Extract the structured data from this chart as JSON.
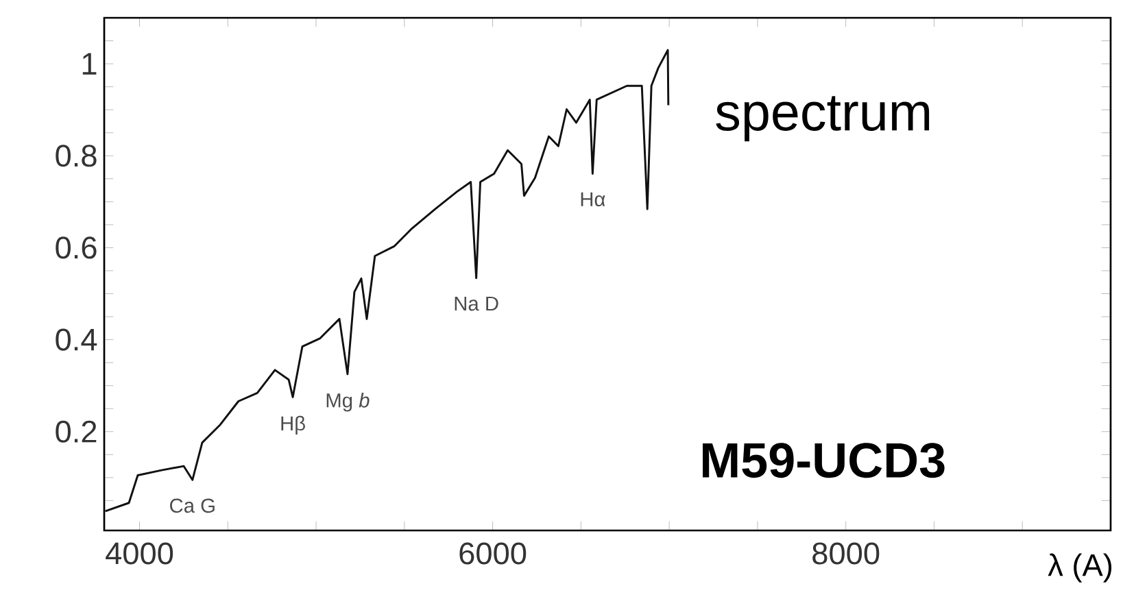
{
  "chart_data": {
    "type": "line",
    "title": "M59-UCD3",
    "xlabel": "λ (A)",
    "x": [
      3806,
      3940,
      3990,
      4124,
      4250,
      4300,
      4355,
      4457,
      4560,
      4667,
      4767,
      4845,
      4868,
      4922,
      5023,
      5132,
      5178,
      5217,
      5256,
      5287,
      5333,
      5442,
      5543,
      5674,
      5798,
      5876,
      5907,
      5930,
      6008,
      6085,
      6163,
      6178,
      6240,
      6318,
      6372,
      6419,
      6473,
      6550,
      6566,
      6589,
      6760,
      6845,
      6876,
      6899,
      6938,
      6992,
      6995
    ],
    "series": [
      {
        "color": "#111111",
        "values": [
          0.027,
          0.045,
          0.105,
          0.116,
          0.125,
          0.095,
          0.176,
          0.215,
          0.266,
          0.284,
          0.334,
          0.313,
          0.275,
          0.385,
          0.403,
          0.445,
          0.325,
          0.504,
          0.533,
          0.445,
          0.582,
          0.603,
          0.642,
          0.684,
          0.722,
          0.743,
          0.534,
          0.743,
          0.761,
          0.812,
          0.782,
          0.713,
          0.752,
          0.842,
          0.821,
          0.901,
          0.872,
          0.922,
          0.761,
          0.922,
          0.952,
          0.952,
          0.684,
          0.952,
          0.991,
          1.03,
          0.91
        ]
      }
    ],
    "xlim": [
      3800,
      9500
    ],
    "ylim": [
      -0.015,
      1.1
    ],
    "xticks": [
      4000,
      {
        "value": 4500,
        "label": null
      },
      {
        "value": 5000,
        "label": null
      },
      {
        "value": 5500,
        "label": null
      },
      6000,
      {
        "value": 6500,
        "label": null
      },
      {
        "value": 7000,
        "label": null
      },
      {
        "value": 7500,
        "label": null
      },
      8000,
      {
        "value": 8500,
        "label": null
      },
      {
        "value": 9000,
        "label": null
      }
    ],
    "yticks": [
      {
        "value": 0.05,
        "label": null
      },
      {
        "value": 0.1,
        "label": null
      },
      {
        "value": 0.15,
        "label": null
      },
      0.2,
      {
        "value": 0.25,
        "label": null
      },
      {
        "value": 0.3,
        "label": null
      },
      {
        "value": 0.35,
        "label": null
      },
      0.4,
      {
        "value": 0.45,
        "label": null
      },
      {
        "value": 0.5,
        "label": null
      },
      {
        "value": 0.55,
        "label": null
      },
      0.6,
      {
        "value": 0.65,
        "label": null
      },
      {
        "value": 0.7,
        "label": null
      },
      {
        "value": 0.75,
        "label": null
      },
      0.8,
      {
        "value": 0.85,
        "label": null
      },
      {
        "value": 0.9,
        "label": null
      },
      {
        "value": 0.95,
        "label": null
      },
      1,
      {
        "value": 1.05,
        "label": null
      }
    ],
    "annotations": [
      {
        "text": "Ca G",
        "x": 4300,
        "y": 0.095
      },
      {
        "text": "Hβ",
        "x": 4868,
        "y": 0.275
      },
      {
        "text": "Mg *b*",
        "x": 5178,
        "y": 0.325
      },
      {
        "text": "Na D",
        "x": 5907,
        "y": 0.534
      },
      {
        "text": "Hα",
        "x": 6566,
        "y": 0.761
      },
      "spectrum"
    ],
    "marker": "none",
    "line_style": "solid"
  }
}
